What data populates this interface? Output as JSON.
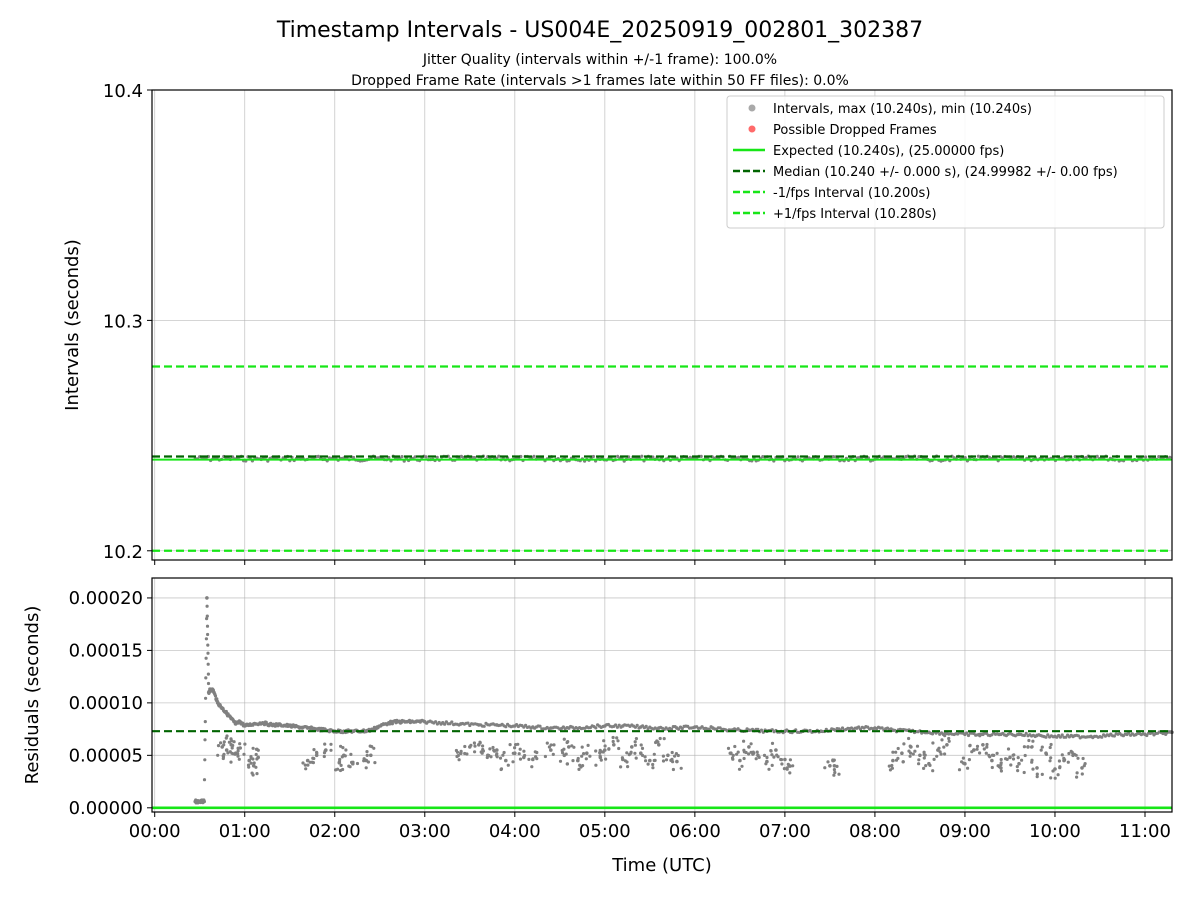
{
  "chart_data": [
    {
      "type": "scatter",
      "panel": "intervals",
      "title": "Timestamp Intervals - US004E_20250919_002801_302387",
      "subtitle_lines": [
        "Jitter Quality (intervals within +/-1 frame): 100.0%",
        "Dropped Frame Rate (intervals >1 frames late within 50 FF files): 0.0%"
      ],
      "xlabel": "",
      "ylabel": "Intervals (seconds)",
      "ylim": [
        10.196,
        10.4
      ],
      "xlim_hours": [
        -0.03,
        11.3
      ],
      "y_ticks": [
        10.2,
        10.3,
        10.4
      ],
      "y_tick_labels": [
        "10.2",
        "10.3",
        "10.4"
      ],
      "grid": true,
      "legend_position": "top-right",
      "legend": [
        {
          "label": "Intervals, max (10.240s), min (10.240s)",
          "kind": "marker",
          "color": "#a9a9a9"
        },
        {
          "label": "Possible Dropped Frames",
          "kind": "marker",
          "color": "#ff6a6a"
        },
        {
          "label": "Expected (10.240s), (25.00000 fps)",
          "kind": "line",
          "color": "#17e617",
          "dash": "solid"
        },
        {
          "label": "Median (10.240 +/- 0.000 s), (24.99982 +/- 0.00 fps)",
          "kind": "line",
          "color": "#006400",
          "dash": "dashed"
        },
        {
          "label": "-1/fps Interval (10.200s)",
          "kind": "line",
          "color": "#17e617",
          "dash": "dashed"
        },
        {
          "label": "+1/fps Interval (10.280s)",
          "kind": "line",
          "color": "#17e617",
          "dash": "dashed"
        }
      ],
      "lines": {
        "expected": 10.24,
        "median": 10.24007,
        "minus_1fps": 10.2,
        "plus_1fps": 10.28
      },
      "series": [
        {
          "name": "Intervals",
          "x_range_hours": [
            0.45,
            11.3
          ],
          "y": 10.24,
          "y_spread": 0.0015,
          "color": "#808080"
        }
      ]
    },
    {
      "type": "scatter",
      "panel": "residuals",
      "xlabel": "Time (UTC)",
      "ylabel": "Residuals (seconds)",
      "ylim": [
        -4e-06,
        0.000219
      ],
      "xlim_hours": [
        -0.03,
        11.3
      ],
      "y_ticks": [
        0.0,
        5e-05,
        0.0001,
        0.00015,
        0.0002
      ],
      "y_tick_labels": [
        "0.00000",
        "0.00005",
        "0.00010",
        "0.00015",
        "0.00020"
      ],
      "x_ticks_hours": [
        0,
        1,
        2,
        3,
        4,
        5,
        6,
        7,
        8,
        9,
        10,
        11
      ],
      "x_tick_labels": [
        "00:00",
        "01:00",
        "02:00",
        "03:00",
        "04:00",
        "05:00",
        "06:00",
        "07:00",
        "08:00",
        "09:00",
        "10:00",
        "11:00"
      ],
      "grid": true,
      "lines": {
        "expected": 0.0,
        "median": 7.3e-05
      },
      "series": [
        {
          "name": "Residuals (upper trend)",
          "color": "#808080",
          "x": [
            0.45,
            0.5,
            0.55,
            0.58,
            0.6,
            0.62,
            0.65,
            0.7,
            0.75,
            0.8,
            0.85,
            0.9,
            0.95,
            1.0,
            1.1,
            1.2,
            1.3,
            1.4,
            1.5,
            1.6,
            1.7,
            1.8,
            1.9,
            2.0,
            2.1,
            2.2,
            2.3,
            2.4,
            2.5,
            2.6,
            2.7,
            2.8,
            2.9,
            3.0,
            3.2,
            3.4,
            3.6,
            3.8,
            4.0,
            4.2,
            4.4,
            4.6,
            4.8,
            5.0,
            5.2,
            5.4,
            5.6,
            5.8,
            6.0,
            6.2,
            6.4,
            6.6,
            6.8,
            7.0,
            7.2,
            7.4,
            7.6,
            7.8,
            8.0,
            8.2,
            8.4,
            8.6,
            8.8,
            9.0,
            9.2,
            9.4,
            9.6,
            9.8,
            10.0,
            10.2,
            10.4,
            10.6,
            10.8,
            11.0,
            11.2,
            11.3
          ],
          "y": [
            6e-06,
            6e-06,
            6e-06,
            0.0002,
            0.00011,
            0.000113,
            0.000112,
            0.0001,
            9.5e-05,
            9e-05,
            8.5e-05,
            8e-05,
            8.2e-05,
            7.8e-05,
            8e-05,
            8.1e-05,
            7.9e-05,
            7.9e-05,
            7.8e-05,
            7.7e-05,
            7.6e-05,
            7.5e-05,
            7.4e-05,
            7.3e-05,
            7.3e-05,
            7.3e-05,
            7.3e-05,
            7.4e-05,
            7.8e-05,
            8.1e-05,
            8.2e-05,
            8.2e-05,
            8.2e-05,
            8.2e-05,
            8.1e-05,
            8e-05,
            7.9e-05,
            7.9e-05,
            7.8e-05,
            7.7e-05,
            7.6e-05,
            7.6e-05,
            7.7e-05,
            7.8e-05,
            7.8e-05,
            7.7e-05,
            7.6e-05,
            7.6e-05,
            7.7e-05,
            7.6e-05,
            7.4e-05,
            7.4e-05,
            7.3e-05,
            7.3e-05,
            7.3e-05,
            7.3e-05,
            7.5e-05,
            7.6e-05,
            7.6e-05,
            7.4e-05,
            7.3e-05,
            7.2e-05,
            7.1e-05,
            7e-05,
            7e-05,
            7e-05,
            7e-05,
            6.9e-05,
            6.8e-05,
            6.8e-05,
            6.8e-05,
            6.9e-05,
            7e-05,
            7e-05,
            7.1e-05,
            7.2e-05
          ]
        },
        {
          "name": "Residuals (lower scatter)",
          "color": "#808080",
          "x": [
            0.75,
            0.8,
            0.85,
            0.9,
            0.95,
            1.05,
            1.1,
            1.15,
            1.7,
            1.8,
            1.9,
            2.05,
            2.1,
            2.2,
            2.35,
            2.4,
            3.4,
            3.5,
            3.6,
            3.7,
            3.8,
            3.9,
            4.0,
            4.1,
            4.2,
            4.4,
            4.55,
            4.6,
            4.7,
            4.8,
            4.95,
            5.0,
            5.1,
            5.2,
            5.3,
            5.4,
            5.5,
            5.6,
            5.7,
            5.8,
            6.4,
            6.5,
            6.6,
            6.7,
            6.8,
            6.9,
            7.0,
            7.05,
            7.5,
            7.55,
            8.2,
            8.3,
            8.4,
            8.5,
            8.6,
            8.7,
            8.8,
            9.0,
            9.1,
            9.2,
            9.3,
            9.4,
            9.5,
            9.6,
            9.7,
            9.8,
            9.9,
            10.0,
            10.1,
            10.2,
            10.3
          ],
          "y": [
            5.8e-05,
            5.5e-05,
            6e-05,
            5.2e-05,
            5.7e-05,
            4.5e-05,
            4e-05,
            4.8e-05,
            4.5e-05,
            5e-05,
            5.5e-05,
            4.3e-05,
            5e-05,
            4.2e-05,
            4.5e-05,
            5e-05,
            5.2e-05,
            5.8e-05,
            6e-05,
            5e-05,
            5.5e-05,
            4.5e-05,
            5.2e-05,
            4.8e-05,
            4.6e-05,
            5.5e-05,
            5e-05,
            5.8e-05,
            4.5e-05,
            5.2e-05,
            4.8e-05,
            5.5e-05,
            6e-05,
            4.6e-05,
            5.8e-05,
            5.2e-05,
            4.5e-05,
            6e-05,
            5e-05,
            4.4e-05,
            5.2e-05,
            4.5e-05,
            5.8e-05,
            5e-05,
            4.4e-05,
            5.5e-05,
            4.6e-05,
            4e-05,
            4e-05,
            4e-05,
            4.5e-05,
            5.2e-05,
            5.8e-05,
            5e-05,
            4.2e-05,
            5.5e-05,
            6e-05,
            4.2e-05,
            5.5e-05,
            6e-05,
            4.5e-05,
            3.8e-05,
            4.8e-05,
            4.2e-05,
            5.8e-05,
            3.8e-05,
            5.2e-05,
            3.7e-05,
            4.5e-05,
            5e-05,
            3.8e-05
          ]
        }
      ]
    }
  ]
}
